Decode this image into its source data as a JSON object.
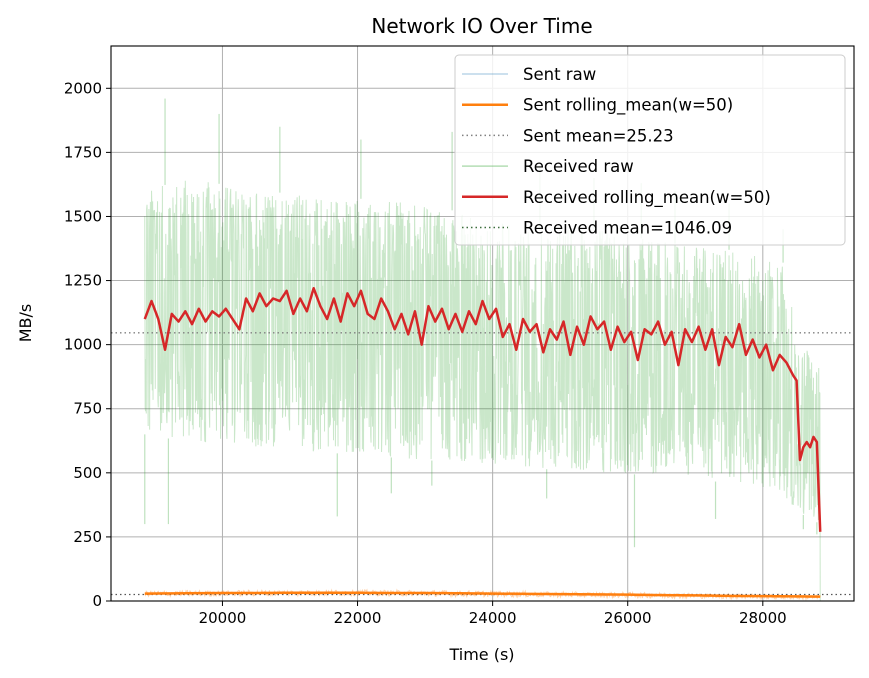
{
  "chart_data": {
    "type": "line",
    "title": "Network IO Over Time",
    "xlabel": "Time (s)",
    "ylabel": "MB/s",
    "xlim": [
      18350,
      29350
    ],
    "ylim": [
      0,
      2165
    ],
    "xticks": [
      20000,
      22000,
      24000,
      26000,
      28000
    ],
    "yticks": [
      0,
      250,
      500,
      750,
      1000,
      1250,
      1500,
      1750,
      2000
    ],
    "grid": true,
    "legend_position": "top-right",
    "colors": {
      "sent_raw": "#1f77b4",
      "sent_rolling": "#ff7f0e",
      "received_raw": "#2ca02c",
      "received_rolling": "#d62728",
      "mean_line": "#808080"
    },
    "legend": [
      "Sent raw",
      "Sent rolling_mean(w=50)",
      "Sent mean=25.23",
      "Received raw",
      "Received rolling_mean(w=50)",
      "Received mean=1046.09"
    ],
    "sent_mean": 25.23,
    "received_mean": 1046.09,
    "received_raw_envelope": {
      "x": [
        18850,
        19500,
        20500,
        21500,
        22500,
        23500,
        24500,
        25500,
        26500,
        27500,
        28300,
        28500,
        28850
      ],
      "upper": [
        1600,
        1650,
        1600,
        1580,
        1560,
        1520,
        1450,
        1450,
        1400,
        1370,
        1320,
        1050,
        900
      ],
      "lower": [
        650,
        620,
        600,
        580,
        560,
        540,
        520,
        500,
        490,
        460,
        420,
        350,
        300
      ]
    },
    "received_raw_peaks": {
      "x": [
        19150,
        19950,
        20850,
        22050,
        23400,
        24700,
        25500,
        26200,
        26700,
        27500,
        28300
      ],
      "y": [
        1960,
        1900,
        1850,
        1800,
        1830,
        1700,
        1650,
        1630,
        1600,
        1550,
        1450
      ]
    },
    "received_raw_troughs": {
      "x": [
        18850,
        19200,
        21700,
        22500,
        23100,
        24800,
        26100,
        27300,
        28600,
        28800
      ],
      "y": [
        300,
        300,
        330,
        420,
        450,
        400,
        210,
        320,
        280,
        260
      ]
    },
    "received_rolling": {
      "x": [
        18850,
        18950,
        19050,
        19150,
        19250,
        19350,
        19450,
        19550,
        19650,
        19750,
        19850,
        19950,
        20050,
        20150,
        20250,
        20350,
        20450,
        20550,
        20650,
        20750,
        20850,
        20950,
        21050,
        21150,
        21250,
        21350,
        21450,
        21550,
        21650,
        21750,
        21850,
        21950,
        22050,
        22150,
        22250,
        22350,
        22450,
        22550,
        22650,
        22750,
        22850,
        22950,
        23050,
        23150,
        23250,
        23350,
        23450,
        23550,
        23650,
        23750,
        23850,
        23950,
        24050,
        24150,
        24250,
        24350,
        24450,
        24550,
        24650,
        24750,
        24850,
        24950,
        25050,
        25150,
        25250,
        25350,
        25450,
        25550,
        25650,
        25750,
        25850,
        25950,
        26050,
        26150,
        26250,
        26350,
        26450,
        26550,
        26650,
        26750,
        26850,
        26950,
        27050,
        27150,
        27250,
        27350,
        27450,
        27550,
        27650,
        27750,
        27850,
        27950,
        28050,
        28150,
        28250,
        28350,
        28450,
        28500,
        28550,
        28600,
        28650,
        28700,
        28750,
        28800,
        28850
      ],
      "y": [
        1100,
        1170,
        1100,
        980,
        1120,
        1090,
        1130,
        1080,
        1140,
        1090,
        1130,
        1110,
        1140,
        1100,
        1060,
        1180,
        1130,
        1200,
        1150,
        1180,
        1170,
        1210,
        1120,
        1180,
        1130,
        1220,
        1150,
        1100,
        1180,
        1090,
        1200,
        1150,
        1210,
        1120,
        1100,
        1180,
        1130,
        1060,
        1120,
        1040,
        1130,
        1000,
        1150,
        1090,
        1140,
        1060,
        1120,
        1050,
        1130,
        1080,
        1170,
        1100,
        1140,
        1030,
        1080,
        980,
        1100,
        1050,
        1080,
        970,
        1060,
        1020,
        1090,
        960,
        1070,
        1000,
        1110,
        1060,
        1090,
        980,
        1070,
        1010,
        1050,
        940,
        1060,
        1040,
        1090,
        1000,
        1050,
        920,
        1060,
        1010,
        1070,
        980,
        1060,
        920,
        1030,
        990,
        1080,
        960,
        1020,
        950,
        1000,
        900,
        960,
        930,
        880,
        860,
        550,
        600,
        620,
        600,
        640,
        620,
        270
      ]
    },
    "sent_raw_band": {
      "x": [
        18850,
        20000,
        21000,
        22000,
        23000,
        24000,
        25000,
        26000,
        27000,
        28000,
        28850
      ],
      "upper": [
        40,
        42,
        44,
        44,
        42,
        40,
        36,
        34,
        30,
        26,
        22
      ],
      "lower": [
        18,
        18,
        20,
        20,
        18,
        16,
        14,
        12,
        10,
        8,
        6
      ]
    },
    "sent_rolling": {
      "x": [
        18850,
        19500,
        20000,
        20500,
        21000,
        21500,
        22000,
        22500,
        23000,
        23500,
        24000,
        24500,
        25000,
        25500,
        26000,
        26500,
        27000,
        27500,
        28000,
        28500,
        28850
      ],
      "y": [
        29,
        30,
        31,
        31,
        32,
        32,
        32,
        31,
        31,
        30,
        29,
        28,
        27,
        26,
        25,
        23,
        22,
        20,
        19,
        18,
        17
      ]
    }
  }
}
